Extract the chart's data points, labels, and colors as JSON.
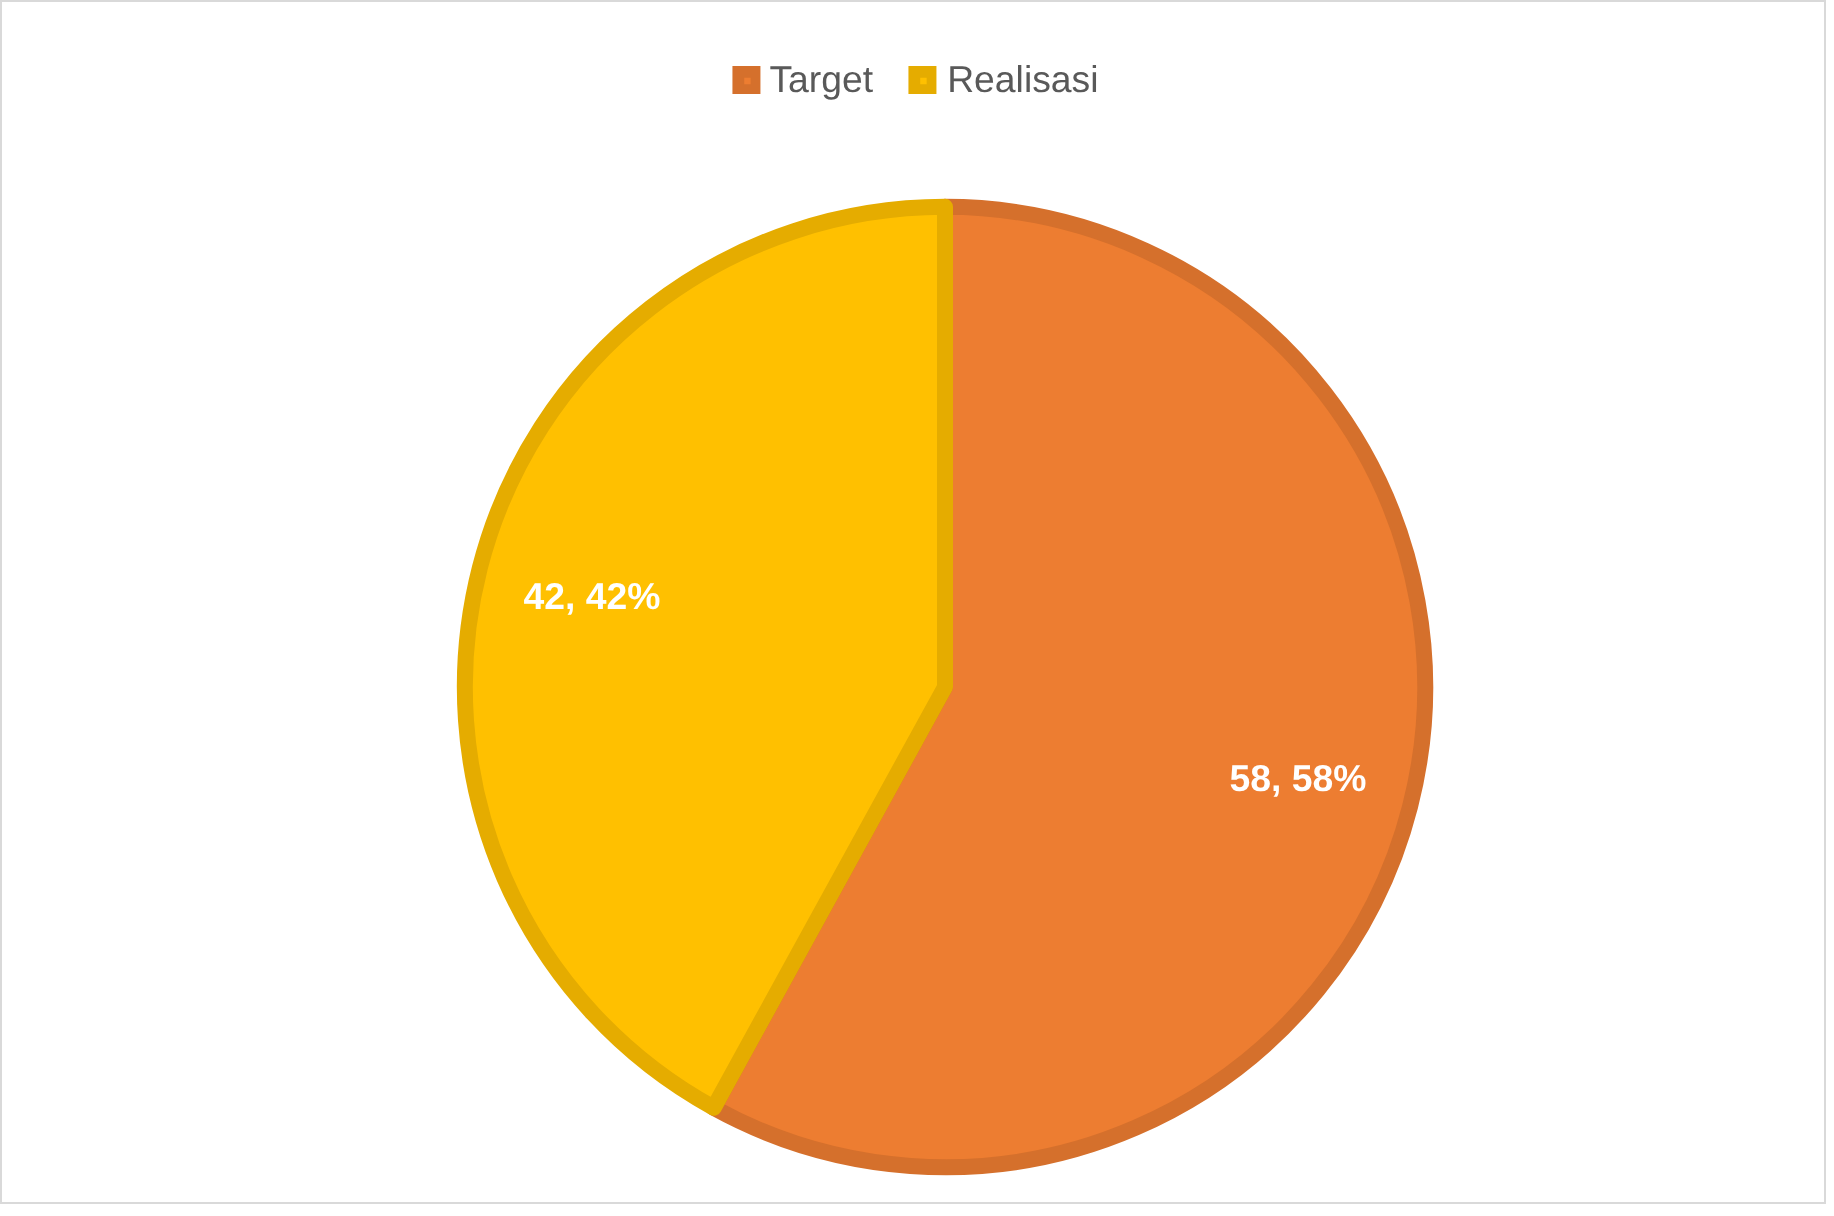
{
  "chart_data": {
    "type": "pie",
    "categories": [
      "Target",
      "Realisasi"
    ],
    "values": [
      58,
      42
    ],
    "colors": [
      "#ed7d31",
      "#ffc000"
    ],
    "value_labels": [
      "58, 58%",
      "42, 42%"
    ],
    "legend": "top"
  }
}
